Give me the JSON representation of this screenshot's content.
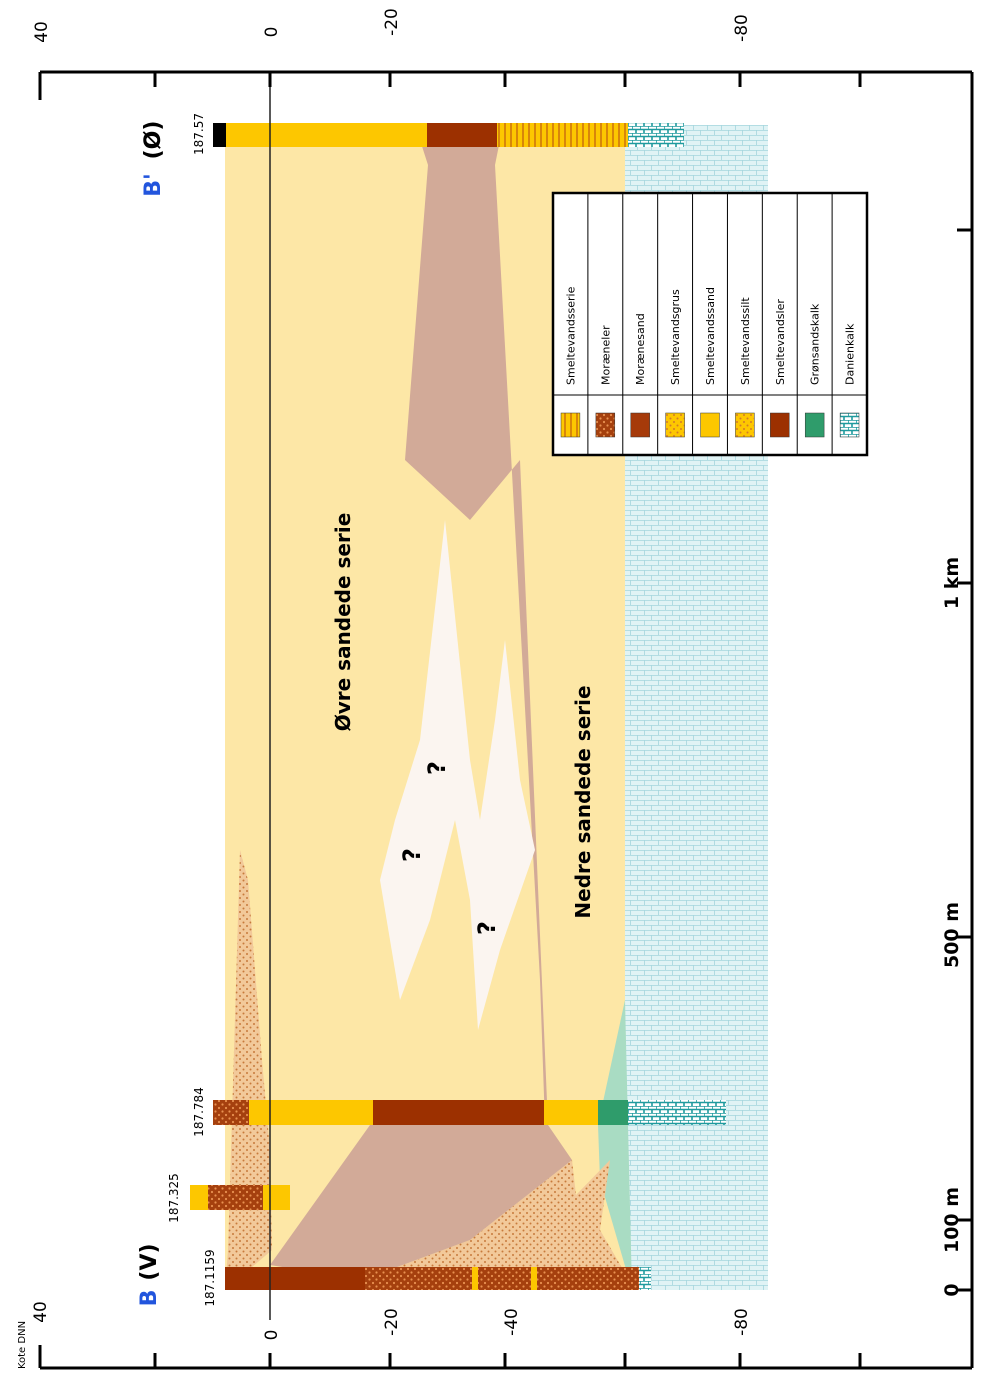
{
  "axis": {
    "left_title": "Kote DNN",
    "left_ticks": [
      "40",
      "0",
      "-20",
      "-40",
      "-80"
    ],
    "top_ticks": [
      "40",
      "0",
      "-20",
      "-80"
    ],
    "bottom_ticks": [
      "0",
      "100 m",
      "500 m",
      "1 km"
    ]
  },
  "profile": {
    "end_left_label": "B",
    "end_left_suffix": "(V)",
    "end_right_label": "B'",
    "end_right_suffix": "(Ø)",
    "upper_series": "Øvre sandede serie",
    "lower_series": "Nedre sandede serie",
    "unknown_marks": [
      "?",
      "?",
      "?"
    ]
  },
  "boreholes": [
    {
      "id": "187.1159"
    },
    {
      "id": "187.325"
    },
    {
      "id": "187.784"
    },
    {
      "id": "187.57"
    }
  ],
  "legend": {
    "items": [
      {
        "label": "Smeltevandsserie",
        "swatch": "stripe"
      },
      {
        "label": "Moræneler",
        "swatch": "dotted-brown"
      },
      {
        "label": "Morænesand",
        "swatch": "solid-brown"
      },
      {
        "label": "Smeltevandsgrus",
        "swatch": "dotted-yellow"
      },
      {
        "label": "Smeltevandssand",
        "swatch": "solid-yellow"
      },
      {
        "label": "Smeltevandssilt",
        "swatch": "dotted-orange"
      },
      {
        "label": "Smeltevandsler",
        "swatch": "solid-dark-brown"
      },
      {
        "label": "Grønsandskalk",
        "swatch": "solid-green"
      },
      {
        "label": "Danienkalk",
        "swatch": "teal-brick"
      }
    ]
  },
  "colors": {
    "sand_light": "#fde7a6",
    "sand_yellow": "#fdc700",
    "clay_pink": "#d2aa98",
    "clay_dark": "#9c3000",
    "moraine_brown": "#a63a0a",
    "dot_tan": "#e8b47a",
    "dot_dark": "#c9743a",
    "limestone": "#daf0f2",
    "limestone_line": "#a8d8de",
    "danien_teal": "#2a9d9f",
    "green": "#2f9c6b",
    "label_blue": "#2255dd"
  }
}
